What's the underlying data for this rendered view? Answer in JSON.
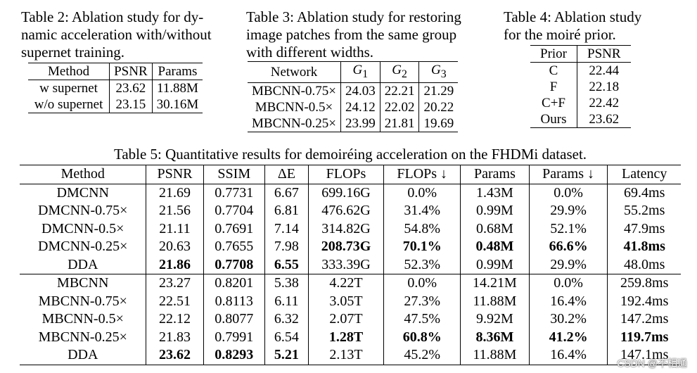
{
  "table2": {
    "caption": "Table 2: Ablation study for dynamic acceleration with/without supernet training.",
    "caption_lines": [
      "Table 2:  Ablation study for dy-",
      "namic acceleration with/without",
      "supernet training."
    ],
    "headers": [
      "Method",
      "PSNR",
      "Params"
    ],
    "rows": [
      [
        "w supernet",
        "23.62",
        "11.88M"
      ],
      [
        "w/o supernet",
        "23.15",
        "30.16M"
      ]
    ]
  },
  "table3": {
    "caption_lines": [
      "Table 3: Ablation study for restoring",
      "image patches from the same group",
      "with different widths."
    ],
    "headers": [
      "Network",
      "G",
      "G",
      "G"
    ],
    "header_subs": [
      "",
      "1",
      "2",
      "3"
    ],
    "rows": [
      [
        "MBCNN-0.75×",
        "24.03",
        "22.21",
        "21.29"
      ],
      [
        "MBCNN-0.5×",
        "24.12",
        "22.02",
        "20.22"
      ],
      [
        "MBCNN-0.25×",
        "23.99",
        "21.81",
        "19.69"
      ]
    ]
  },
  "table4": {
    "caption_lines": [
      "Table 4:  Ablation study",
      "for the moiré prior."
    ],
    "headers": [
      "Prior",
      "PSNR"
    ],
    "rows": [
      [
        "C",
        "22.44"
      ],
      [
        "F",
        "22.18"
      ],
      [
        "C+F",
        "22.42"
      ],
      [
        "Ours",
        "23.62"
      ]
    ]
  },
  "table5": {
    "caption": "Table 5: Quantitative results for demoiréing acceleration on the FHDMi dataset.",
    "headers": [
      "Method",
      "PSNR",
      "SSIM",
      "ΔE",
      "FLOPs",
      "FLOPs ↓",
      "Params",
      "Params ↓",
      "Latency"
    ],
    "group1": [
      [
        "DMCNN",
        "21.69",
        "0.7731",
        "6.67",
        "699.16G",
        "0.0%",
        "1.43M",
        "0.0%",
        "69.4ms"
      ],
      [
        "DMCNN-0.75×",
        "21.56",
        "0.7704",
        "6.81",
        "476.62G",
        "31.4%",
        "0.99M",
        "29.9%",
        "55.2ms"
      ],
      [
        "DMCNN-0.5×",
        "21.11",
        "0.7691",
        "7.14",
        "314.82G",
        "54.8%",
        "0.68M",
        "52.1%",
        "47.9ms"
      ],
      [
        "DMCNN-0.25×",
        "20.63",
        "0.7655",
        "7.98",
        "208.73G",
        "70.1%",
        "0.48M",
        "66.6%",
        "41.8ms"
      ],
      [
        "DDA",
        "21.86",
        "0.7708",
        "6.55",
        "333.39G",
        "52.3%",
        "0.99M",
        "29.9%",
        "48.0ms"
      ]
    ],
    "group2": [
      [
        "MBCNN",
        "23.27",
        "0.8201",
        "5.38",
        "4.22T",
        "0.0%",
        "14.21M",
        "0.0%",
        "259.8ms"
      ],
      [
        "MBCNN-0.75×",
        "22.51",
        "0.8113",
        "6.11",
        "3.05T",
        "27.3%",
        "11.88M",
        "16.4%",
        "192.4ms"
      ],
      [
        "MBCNN-0.5×",
        "22.12",
        "0.8077",
        "6.32",
        "2.07T",
        "47.5%",
        "9.92M",
        "30.2%",
        "147.2ms"
      ],
      [
        "MBCNN-0.25×",
        "21.83",
        "0.7991",
        "6.54",
        "1.28T",
        "60.8%",
        "8.36M",
        "41.2%",
        "119.7ms"
      ],
      [
        "DDA",
        "23.62",
        "0.8293",
        "5.21",
        "2.13T",
        "45.2%",
        "11.88M",
        "16.4%",
        "147.1ms"
      ]
    ]
  },
  "watermark": "CSDN @不相通"
}
